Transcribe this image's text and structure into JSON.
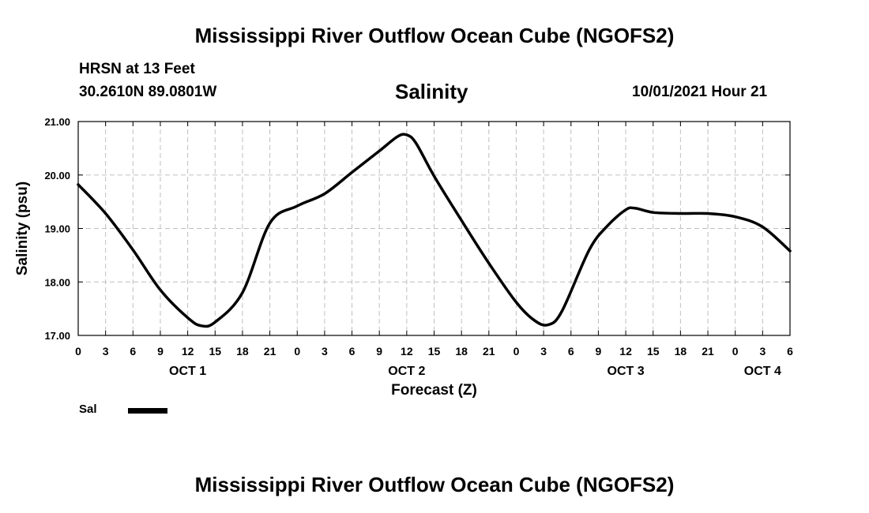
{
  "header": {
    "title": "Mississippi River Outflow Ocean Cube (NGOFS2)",
    "station": "HRSN at 13 Feet",
    "coords": "30.2610N  89.0801W",
    "parameter": "Salinity",
    "date": "10/01/2021 Hour 21"
  },
  "footer": {
    "title": "Mississippi River Outflow Ocean Cube (NGOFS2)"
  },
  "legend": {
    "label": "Sal"
  },
  "colors": {
    "line": "#000000",
    "grid": "#bfbfbf"
  },
  "chart_data": {
    "type": "line",
    "title": "Salinity",
    "xlabel": "Forecast (Z)",
    "ylabel": "Salinity (psu)",
    "xlim": [
      0,
      78
    ],
    "ylim": [
      17.0,
      21.0
    ],
    "y_ticks": [
      17.0,
      18.0,
      19.0,
      20.0,
      21.0
    ],
    "y_tick_labels": [
      "17.00",
      "18.00",
      "19.00",
      "20.00",
      "21.00"
    ],
    "x_ticks": [
      0,
      3,
      6,
      9,
      12,
      15,
      18,
      21,
      24,
      27,
      30,
      33,
      36,
      39,
      42,
      45,
      48,
      51,
      54,
      57,
      60,
      63,
      66,
      69,
      72,
      75,
      78
    ],
    "x_tick_labels": [
      "0",
      "3",
      "6",
      "9",
      "12",
      "15",
      "18",
      "21",
      "0",
      "3",
      "6",
      "9",
      "12",
      "15",
      "18",
      "21",
      "0",
      "3",
      "6",
      "9",
      "12",
      "15",
      "18",
      "21",
      "0",
      "3",
      "6"
    ],
    "day_labels": [
      {
        "x": 12,
        "label": "OCT 1"
      },
      {
        "x": 36,
        "label": "OCT 2"
      },
      {
        "x": 60,
        "label": "OCT 3"
      },
      {
        "x": 75,
        "label": "OCT 4"
      }
    ],
    "grid": true,
    "series": [
      {
        "name": "Sal",
        "x": [
          0,
          3,
          6,
          9,
          12,
          13.5,
          15,
          18,
          21,
          24,
          27,
          30,
          33,
          35,
          36,
          37,
          39,
          42,
          45,
          48,
          50,
          51.5,
          53,
          56,
          58,
          60,
          61,
          63,
          66,
          69,
          72,
          75,
          78
        ],
        "y": [
          19.82,
          19.28,
          18.6,
          17.85,
          17.33,
          17.18,
          17.25,
          17.8,
          19.1,
          19.42,
          19.65,
          20.05,
          20.45,
          20.72,
          20.75,
          20.6,
          19.98,
          19.15,
          18.35,
          17.62,
          17.28,
          17.2,
          17.45,
          18.6,
          19.05,
          19.35,
          19.38,
          19.3,
          19.28,
          19.28,
          19.22,
          19.03,
          18.58
        ]
      }
    ]
  }
}
